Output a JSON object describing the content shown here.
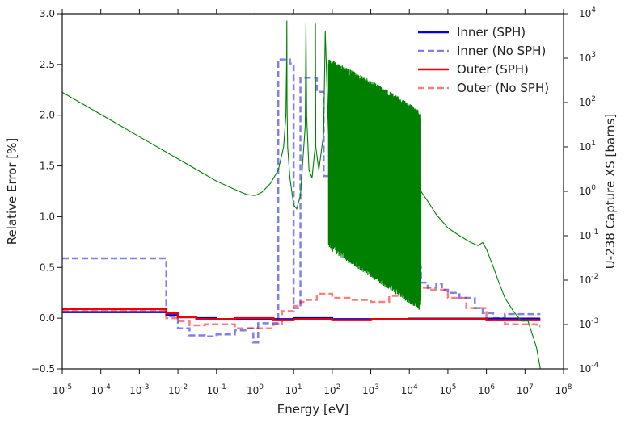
{
  "chart_data": {
    "type": "line",
    "xlabel": "Energy [eV]",
    "ylabel": "Relative Error [%]",
    "y2label": "U-238 Capture XS [barns]",
    "x_scale": "log",
    "y2_scale": "log",
    "xlim": [
      1e-05,
      100000000.0
    ],
    "ylim": [
      -0.5,
      3.0
    ],
    "y2lim": [
      0.0001,
      10000.0
    ],
    "grid": false,
    "legend_position": "top-right",
    "x_ticks": [
      {
        "value": 1e-05,
        "base": "10",
        "exp": "-5"
      },
      {
        "value": 0.0001,
        "base": "10",
        "exp": "-4"
      },
      {
        "value": 0.001,
        "base": "10",
        "exp": "-3"
      },
      {
        "value": 0.01,
        "base": "10",
        "exp": "-2"
      },
      {
        "value": 0.1,
        "base": "10",
        "exp": "-1"
      },
      {
        "value": 1.0,
        "base": "10",
        "exp": "0"
      },
      {
        "value": 10.0,
        "base": "10",
        "exp": "1"
      },
      {
        "value": 100.0,
        "base": "10",
        "exp": "2"
      },
      {
        "value": 1000.0,
        "base": "10",
        "exp": "3"
      },
      {
        "value": 10000.0,
        "base": "10",
        "exp": "4"
      },
      {
        "value": 100000.0,
        "base": "10",
        "exp": "5"
      },
      {
        "value": 1000000.0,
        "base": "10",
        "exp": "6"
      },
      {
        "value": 10000000.0,
        "base": "10",
        "exp": "7"
      },
      {
        "value": 100000000.0,
        "base": "10",
        "exp": "8"
      }
    ],
    "y_ticks": [
      {
        "value": -0.5,
        "label": "−0.5"
      },
      {
        "value": 0.0,
        "label": "0.0"
      },
      {
        "value": 0.5,
        "label": "0.5"
      },
      {
        "value": 1.0,
        "label": "1.0"
      },
      {
        "value": 1.5,
        "label": "1.5"
      },
      {
        "value": 2.0,
        "label": "2.0"
      },
      {
        "value": 2.5,
        "label": "2.5"
      },
      {
        "value": 3.0,
        "label": "3.0"
      }
    ],
    "y2_ticks": [
      {
        "value": 0.0001,
        "base": "10",
        "exp": "-4"
      },
      {
        "value": 0.001,
        "base": "10",
        "exp": "-3"
      },
      {
        "value": 0.01,
        "base": "10",
        "exp": "-2"
      },
      {
        "value": 0.1,
        "base": "10",
        "exp": "-1"
      },
      {
        "value": 1.0,
        "base": "10",
        "exp": "0"
      },
      {
        "value": 10.0,
        "base": "10",
        "exp": "1"
      },
      {
        "value": 100.0,
        "base": "10",
        "exp": "2"
      },
      {
        "value": 1000.0,
        "base": "10",
        "exp": "3"
      },
      {
        "value": 10000.0,
        "base": "10",
        "exp": "4"
      }
    ],
    "series": [
      {
        "name": "Inner (SPH)",
        "color": "#0000dd",
        "dash": "solid",
        "opacity": 1.0,
        "axis": "left",
        "step": true,
        "x": [
          1e-05,
          0.005,
          0.01,
          0.03,
          0.1,
          0.3,
          1,
          3,
          10,
          30,
          100,
          1000,
          10000,
          100000,
          1000000,
          20000000
        ],
        "y": [
          0.06,
          0.03,
          0.01,
          0.0,
          -0.01,
          -0.01,
          -0.01,
          -0.01,
          0.0,
          0.0,
          -0.01,
          -0.01,
          -0.005,
          -0.005,
          -0.005,
          -0.005
        ]
      },
      {
        "name": "Inner (No SPH)",
        "color": "#0000dd",
        "dash": "dashed",
        "opacity": 0.5,
        "axis": "left",
        "step": true,
        "x": [
          1e-05,
          0.005,
          0.01,
          0.02,
          0.05,
          0.1,
          0.3,
          0.6,
          0.9,
          1.2,
          4,
          8,
          10,
          15,
          20,
          40,
          60,
          100,
          300,
          600,
          1000,
          2000,
          3000,
          4000,
          5000,
          8000,
          10000,
          20000,
          30000,
          50000,
          70000,
          100000,
          200000,
          500000,
          800000,
          1500000,
          3000000,
          6000000,
          20000000
        ],
        "y": [
          0.59,
          0.02,
          -0.1,
          -0.17,
          -0.18,
          -0.16,
          -0.12,
          -0.1,
          -0.24,
          -0.05,
          2.55,
          2.51,
          0.1,
          2.37,
          2.37,
          2.23,
          1.4,
          1.52,
          1.5,
          1.2,
          1.41,
          1.35,
          1.22,
          1.0,
          0.8,
          0.6,
          0.5,
          0.35,
          0.3,
          0.34,
          0.28,
          0.25,
          0.2,
          0.1,
          0.05,
          0.0,
          0.04,
          0.04,
          0.04
        ]
      },
      {
        "name": "Outer (SPH)",
        "color": "#ee0000",
        "dash": "solid",
        "opacity": 1.0,
        "axis": "left",
        "step": true,
        "x": [
          1e-05,
          0.005,
          0.01,
          0.03,
          0.1,
          0.3,
          1,
          3,
          10,
          30,
          100,
          1000,
          10000,
          100000,
          1000000,
          20000000
        ],
        "y": [
          0.09,
          0.05,
          0.01,
          -0.01,
          -0.01,
          0.0,
          0.0,
          -0.02,
          -0.01,
          -0.01,
          -0.02,
          -0.01,
          -0.01,
          -0.01,
          -0.02,
          -0.02
        ]
      },
      {
        "name": "Outer (No SPH)",
        "color": "#ee0000",
        "dash": "dashed",
        "opacity": 0.5,
        "axis": "left",
        "step": true,
        "x": [
          1e-05,
          0.005,
          0.01,
          0.02,
          0.05,
          0.1,
          0.3,
          1,
          3,
          5,
          10,
          15,
          20,
          40,
          100,
          300,
          1000,
          3000,
          10000,
          30000,
          50000,
          100000,
          300000,
          1000000,
          3000000,
          20000000
        ],
        "y": [
          0.07,
          0.0,
          -0.03,
          -0.07,
          -0.06,
          -0.06,
          -0.1,
          -0.1,
          -0.06,
          0.07,
          0.12,
          0.16,
          0.18,
          0.24,
          0.2,
          0.18,
          0.16,
          0.22,
          0.3,
          0.28,
          0.28,
          0.2,
          0.1,
          -0.02,
          -0.06,
          -0.08
        ]
      },
      {
        "name": "U-238 Capture XS",
        "color": "#008000",
        "dash": "solid",
        "opacity": 1.0,
        "axis": "right",
        "step": false,
        "resonance_region_eV": [
          6,
          20000
        ],
        "x": [
          1e-05,
          0.0001,
          0.001,
          0.01,
          0.1,
          0.3,
          0.6,
          1.0,
          1.5,
          2.5,
          4.0,
          5.5,
          6.3,
          6.6,
          6.67,
          6.75,
          7.0,
          8.0,
          10.0,
          12.0,
          15.0,
          20.0,
          20.9,
          21.8,
          25.0,
          30.0,
          36.0,
          36.7,
          37.5,
          45.0,
          60.0,
          66.0,
          80.0,
          100.0,
          150.0,
          200.0,
          400.0,
          800.0,
          2000.0,
          5000.0,
          20000.0,
          30000.0,
          50000.0,
          100000.0,
          200000.0,
          400000.0,
          600000.0,
          800000.0,
          1000000.0,
          1500000.0,
          2000000.0,
          3000000.0,
          5000000.0,
          8000000.0,
          12000000.0,
          20000000.0,
          25000000.0
        ],
        "y": [
          170,
          54,
          17,
          5.4,
          1.7,
          1.1,
          0.85,
          0.8,
          0.95,
          1.5,
          3.0,
          10.0,
          50.0,
          1000.0,
          7000.0,
          100.0,
          10.0,
          2.0,
          0.5,
          0.4,
          0.8,
          30.0,
          6000.0,
          50.0,
          3.0,
          2.0,
          10.0,
          6000.0,
          10.0,
          3.0,
          20.0,
          4000.0,
          20.0,
          200.0,
          50.0,
          30.0,
          20.0,
          8.0,
          3.0,
          1.5,
          1.0,
          0.6,
          0.3,
          0.15,
          0.1,
          0.07,
          0.06,
          0.07,
          0.05,
          0.02,
          0.01,
          0.004,
          0.002,
          0.0012,
          0.0012,
          0.0003,
          0.0001
        ]
      }
    ]
  }
}
